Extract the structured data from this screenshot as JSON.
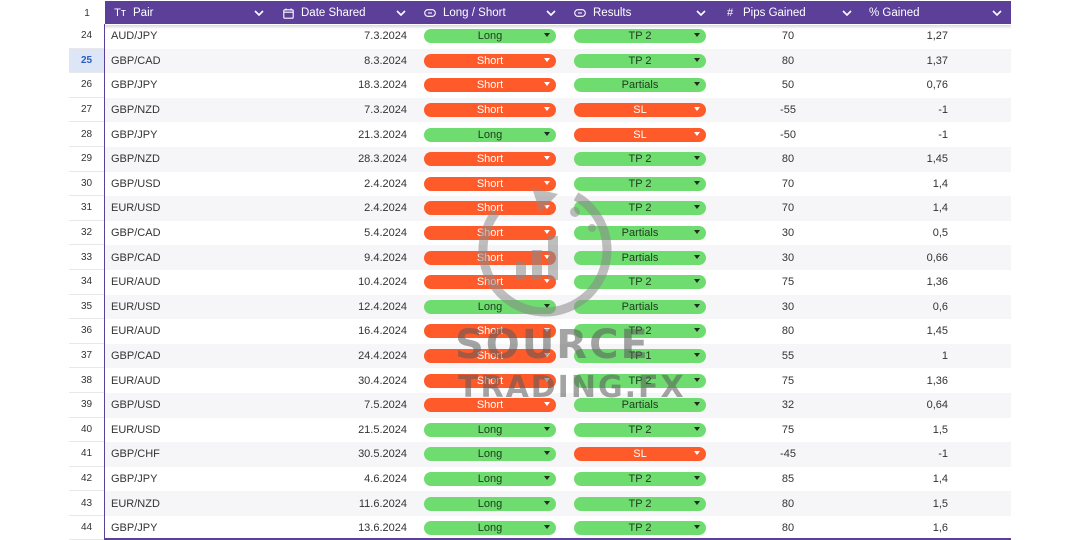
{
  "header": {
    "row_number": "1",
    "columns": [
      {
        "label": "Pair",
        "icon": "text-type-icon",
        "glyph": "Tт"
      },
      {
        "label": "Date Shared",
        "icon": "calendar-icon",
        "glyph": "📅"
      },
      {
        "label": "Long / Short",
        "icon": "dropdown-pill-icon",
        "glyph": "⊖"
      },
      {
        "label": "Results",
        "icon": "dropdown-pill-icon",
        "glyph": "⊖"
      },
      {
        "label": "Pips Gained",
        "icon": "number-hash-icon",
        "glyph": "#"
      },
      {
        "label": "% Gained",
        "icon": "",
        "glyph": ""
      }
    ]
  },
  "selected_row": "25",
  "rows": [
    {
      "n": "24",
      "pair": "AUD/JPY",
      "date": "7.3.2024",
      "ls": "Long",
      "res": "TP 2",
      "pips": "70",
      "pct": "1,27"
    },
    {
      "n": "25",
      "pair": "GBP/CAD",
      "date": "8.3.2024",
      "ls": "Short",
      "res": "TP 2",
      "pips": "80",
      "pct": "1,37"
    },
    {
      "n": "26",
      "pair": "GBP/JPY",
      "date": "18.3.2024",
      "ls": "Short",
      "res": "Partials",
      "pips": "50",
      "pct": "0,76"
    },
    {
      "n": "27",
      "pair": "GBP/NZD",
      "date": "7.3.2024",
      "ls": "Short",
      "res": "SL",
      "pips": "-55",
      "pct": "-1"
    },
    {
      "n": "28",
      "pair": "GBP/JPY",
      "date": "21.3.2024",
      "ls": "Long",
      "res": "SL",
      "pips": "-50",
      "pct": "-1"
    },
    {
      "n": "29",
      "pair": "GBP/NZD",
      "date": "28.3.2024",
      "ls": "Short",
      "res": "TP 2",
      "pips": "80",
      "pct": "1,45"
    },
    {
      "n": "30",
      "pair": "GBP/USD",
      "date": "2.4.2024",
      "ls": "Short",
      "res": "TP 2",
      "pips": "70",
      "pct": "1,4"
    },
    {
      "n": "31",
      "pair": "EUR/USD",
      "date": "2.4.2024",
      "ls": "Short",
      "res": "TP 2",
      "pips": "70",
      "pct": "1,4"
    },
    {
      "n": "32",
      "pair": "GBP/CAD",
      "date": "5.4.2024",
      "ls": "Short",
      "res": "Partials",
      "pips": "30",
      "pct": "0,5"
    },
    {
      "n": "33",
      "pair": "GBP/CAD",
      "date": "9.4.2024",
      "ls": "Short",
      "res": "Partials",
      "pips": "30",
      "pct": "0,66"
    },
    {
      "n": "34",
      "pair": "EUR/AUD",
      "date": "10.4.2024",
      "ls": "Short",
      "res": "TP 2",
      "pips": "75",
      "pct": "1,36"
    },
    {
      "n": "35",
      "pair": "EUR/USD",
      "date": "12.4.2024",
      "ls": "Long",
      "res": "Partials",
      "pips": "30",
      "pct": "0,6"
    },
    {
      "n": "36",
      "pair": "EUR/AUD",
      "date": "16.4.2024",
      "ls": "Short",
      "res": "TP 2",
      "pips": "80",
      "pct": "1,45"
    },
    {
      "n": "37",
      "pair": "GBP/CAD",
      "date": "24.4.2024",
      "ls": "Short",
      "res": "TP 1",
      "pips": "55",
      "pct": "1"
    },
    {
      "n": "38",
      "pair": "EUR/AUD",
      "date": "30.4.2024",
      "ls": "Short",
      "res": "TP 2",
      "pips": "75",
      "pct": "1,36"
    },
    {
      "n": "39",
      "pair": "GBP/USD",
      "date": "7.5.2024",
      "ls": "Short",
      "res": "Partials",
      "pips": "32",
      "pct": "0,64"
    },
    {
      "n": "40",
      "pair": "EUR/USD",
      "date": "21.5.2024",
      "ls": "Long",
      "res": "TP 2",
      "pips": "75",
      "pct": "1,5"
    },
    {
      "n": "41",
      "pair": "GBP/CHF",
      "date": "30.5.2024",
      "ls": "Long",
      "res": "SL",
      "pips": "-45",
      "pct": "-1"
    },
    {
      "n": "42",
      "pair": "GBP/JPY",
      "date": "4.6.2024",
      "ls": "Long",
      "res": "TP 2",
      "pips": "85",
      "pct": "1,4"
    },
    {
      "n": "43",
      "pair": "EUR/NZD",
      "date": "11.6.2024",
      "ls": "Long",
      "res": "TP 2",
      "pips": "80",
      "pct": "1,5"
    },
    {
      "n": "44",
      "pair": "GBP/JPY",
      "date": "13.6.2024",
      "ls": "Long",
      "res": "TP 2",
      "pips": "80",
      "pct": "1,6"
    }
  ],
  "watermark": {
    "line1": "SOURCE",
    "line2": "TRADING.FX"
  },
  "colors": {
    "header": "#5b3f99",
    "green_pill": "#6fdc6f",
    "red_pill": "#ff5a2a",
    "selected_row": "#dde6f7"
  }
}
